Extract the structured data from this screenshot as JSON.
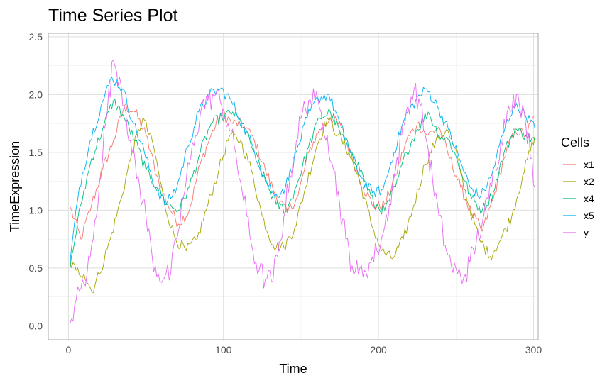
{
  "chart_data": {
    "type": "line",
    "title": "Time Series Plot",
    "xlabel": "Time",
    "ylabel": "TimeExpression",
    "xlim": [
      -13,
      303
    ],
    "ylim": [
      -0.12,
      2.53
    ],
    "xticks": [
      0,
      100,
      200,
      300
    ],
    "yticks": [
      0.0,
      0.5,
      1.0,
      1.5,
      2.0,
      2.5
    ],
    "xtick_labels": [
      "0",
      "100",
      "200",
      "300"
    ],
    "ytick_labels": [
      "0.0",
      "0.5",
      "1.0",
      "1.5",
      "2.0",
      "2.5"
    ],
    "grid": true,
    "legend": {
      "title": "Cells",
      "position": "right"
    },
    "series": [
      {
        "name": "x1",
        "color": "#F8766D",
        "x": [
          1,
          8,
          15,
          22,
          29,
          36,
          43,
          50,
          57,
          64,
          71,
          78,
          85,
          92,
          99,
          106,
          113,
          120,
          127,
          134,
          141,
          148,
          155,
          162,
          169,
          176,
          183,
          190,
          197,
          204,
          211,
          218,
          225,
          232,
          239,
          246,
          253,
          260,
          267,
          274,
          281,
          288,
          295,
          301
        ],
        "y": [
          1.03,
          0.75,
          1.05,
          1.35,
          1.6,
          1.9,
          1.85,
          1.65,
          1.3,
          1.05,
          0.88,
          1.0,
          1.4,
          1.65,
          1.85,
          1.75,
          1.75,
          1.6,
          1.35,
          1.12,
          0.98,
          1.12,
          1.5,
          1.7,
          1.8,
          1.72,
          1.45,
          1.2,
          1.03,
          1.05,
          1.3,
          1.6,
          1.75,
          1.65,
          1.72,
          1.45,
          1.2,
          0.97,
          0.82,
          1.1,
          1.45,
          1.7,
          1.65,
          1.82
        ]
      },
      {
        "name": "x2",
        "color": "#A3A500",
        "x": [
          1,
          5,
          10,
          15,
          20,
          27,
          34,
          41,
          48,
          55,
          62,
          69,
          76,
          83,
          90,
          97,
          104,
          111,
          118,
          125,
          132,
          139,
          146,
          153,
          160,
          167,
          174,
          181,
          188,
          195,
          202,
          209,
          216,
          223,
          230,
          237,
          244,
          251,
          258,
          265,
          272,
          279,
          286,
          293,
          301
        ],
        "y": [
          0.55,
          0.48,
          0.45,
          0.3,
          0.45,
          0.75,
          1.1,
          1.5,
          1.8,
          1.55,
          1.05,
          0.75,
          0.65,
          0.75,
          1.05,
          1.35,
          1.65,
          1.6,
          1.35,
          0.95,
          0.7,
          0.68,
          0.85,
          1.2,
          1.55,
          1.8,
          1.65,
          1.5,
          1.25,
          0.9,
          0.65,
          0.58,
          0.75,
          1.05,
          1.4,
          1.6,
          1.7,
          1.45,
          1.05,
          0.75,
          0.6,
          0.75,
          0.95,
          1.3,
          1.65
        ]
      },
      {
        "name": "x4",
        "color": "#00BF7D",
        "x": [
          1,
          8,
          15,
          22,
          29,
          36,
          43,
          50,
          57,
          64,
          71,
          78,
          85,
          92,
          99,
          106,
          113,
          120,
          127,
          134,
          141,
          148,
          155,
          162,
          169,
          176,
          183,
          190,
          197,
          204,
          211,
          218,
          225,
          232,
          239,
          246,
          253,
          260,
          267,
          274,
          281,
          288,
          295,
          301
        ],
        "y": [
          0.5,
          1.05,
          1.45,
          1.7,
          1.95,
          1.8,
          1.6,
          1.35,
          1.2,
          1.05,
          1.0,
          1.2,
          1.5,
          1.75,
          1.8,
          1.85,
          1.72,
          1.5,
          1.25,
          1.05,
          1.0,
          1.25,
          1.55,
          1.8,
          1.85,
          1.65,
          1.5,
          1.3,
          1.05,
          1.0,
          1.2,
          1.5,
          1.7,
          1.85,
          1.65,
          1.6,
          1.35,
          1.1,
          1.0,
          1.15,
          1.5,
          1.7,
          1.65,
          1.6
        ]
      },
      {
        "name": "x5",
        "color": "#00B0F6",
        "x": [
          1,
          7,
          14,
          21,
          28,
          35,
          42,
          49,
          56,
          63,
          70,
          77,
          84,
          91,
          98,
          105,
          112,
          119,
          126,
          133,
          140,
          147,
          154,
          161,
          168,
          175,
          182,
          189,
          196,
          203,
          210,
          217,
          224,
          231,
          238,
          245,
          252,
          259,
          266,
          273,
          280,
          287,
          294,
          301
        ],
        "y": [
          0.55,
          1.2,
          1.6,
          1.9,
          2.15,
          2.05,
          1.75,
          1.5,
          1.2,
          1.05,
          1.2,
          1.55,
          1.85,
          2.0,
          2.05,
          1.95,
          1.75,
          1.55,
          1.3,
          1.12,
          1.2,
          1.5,
          1.8,
          1.97,
          2.0,
          1.75,
          1.5,
          1.28,
          1.15,
          1.18,
          1.5,
          1.8,
          1.95,
          2.05,
          1.9,
          1.7,
          1.45,
          1.2,
          1.12,
          1.3,
          1.65,
          1.9,
          1.85,
          1.7
        ]
      },
      {
        "name": "y",
        "color": "#E76BF3",
        "x": [
          1,
          4,
          8,
          12,
          16,
          20,
          24,
          29,
          33,
          37,
          41,
          46,
          50,
          54,
          58,
          62,
          66,
          70,
          74,
          78,
          82,
          86,
          90,
          95,
          99,
          103,
          107,
          111,
          115,
          119,
          123,
          127,
          131,
          135,
          139,
          143,
          147,
          151,
          155,
          159,
          163,
          167,
          171,
          175,
          179,
          183,
          187,
          191,
          195,
          199,
          203,
          207,
          211,
          215,
          219,
          223,
          227,
          231,
          235,
          239,
          243,
          247,
          251,
          255,
          259,
          263,
          267,
          271,
          275,
          279,
          283,
          287,
          291,
          295,
          299,
          301
        ],
        "y": [
          0.02,
          0.18,
          0.32,
          0.45,
          0.75,
          1.25,
          1.75,
          2.3,
          2.15,
          1.85,
          1.5,
          1.2,
          0.95,
          0.6,
          0.45,
          0.42,
          0.45,
          0.75,
          1.1,
          1.4,
          1.65,
          1.9,
          1.95,
          2.0,
          1.9,
          1.75,
          1.55,
          1.25,
          0.95,
          0.65,
          0.48,
          0.4,
          0.38,
          0.6,
          0.95,
          1.3,
          1.6,
          1.85,
          1.95,
          1.95,
          1.85,
          1.65,
          1.35,
          1.05,
          0.75,
          0.52,
          0.45,
          0.48,
          0.55,
          0.65,
          0.8,
          1.05,
          1.35,
          1.65,
          1.9,
          2.05,
          1.9,
          1.6,
          1.25,
          0.95,
          0.7,
          0.52,
          0.45,
          0.42,
          0.55,
          0.72,
          0.9,
          1.1,
          1.35,
          1.6,
          1.85,
          2.0,
          1.9,
          1.75,
          1.45,
          1.2
        ]
      }
    ]
  }
}
